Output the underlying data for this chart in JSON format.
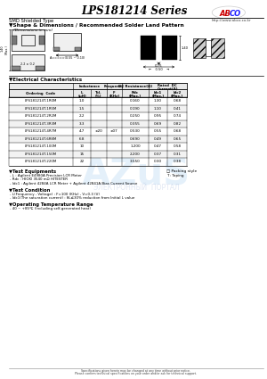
{
  "title": "LPS181214 Series",
  "website": "http://www.abco.co.kr",
  "subtitle1": "SMD Shielded Type",
  "subtitle2": "▼Shape & Dimensions / Recommended Solder Land Pattern",
  "dim_note": "(Dimensions in mm)",
  "section_elec": "▼Electrical Characteristics",
  "table_header_groups": [
    "",
    "Inductance",
    "Frequency",
    "DC Resistance(Ω)",
    "Rated  DC\nCurrent(A)"
  ],
  "table_headers": [
    "Ordering  Code",
    "L\n(μH)",
    "Tol.\n(%)",
    "F\n(KHz)",
    "Rdc\n(Max.)",
    "Idc1\n(Max.)",
    "Idc2\n(Max.)"
  ],
  "table_rows": [
    [
      "LPS181214T-1R0M",
      "1.0",
      "",
      "",
      "0.160",
      "1.30",
      "0.68"
    ],
    [
      "LPS181214T-1R5M",
      "1.5",
      "",
      "",
      "0.190",
      "1.10",
      "0.41"
    ],
    [
      "LPS181214T-2R2M",
      "2.2",
      "",
      "",
      "0.250",
      "0.95",
      "0.74"
    ],
    [
      "LPS181214T-3R3M",
      "3.3",
      "",
      "",
      "0.355",
      "0.69",
      "0.82"
    ],
    [
      "LPS181214T-4R7M",
      "4.7",
      "±20",
      "±07",
      "0.530",
      "0.55",
      "0.68"
    ],
    [
      "LPS181214T-6R8M",
      "6.8",
      "",
      "",
      "0.690",
      "0.49",
      "0.65"
    ],
    [
      "LPS181214T-100M",
      "10",
      "",
      "",
      "1.200",
      "0.47",
      "0.58"
    ],
    [
      "LPS181214T-150M",
      "15",
      "",
      "",
      "2.200",
      "0.37",
      "0.31"
    ],
    [
      "LPS181214T-220M",
      "22",
      "",
      "",
      "3.550",
      "0.30",
      "0.38"
    ]
  ],
  "test_equip_title": "▼Test Equipments",
  "test_equip": [
    "- L : Agilent E4980A Precision LCR Meter",
    "- Rdc : HIOKI 3540 mΩ HITESTER",
    "- Idc1 : Agilent 4284A LCR Meter + Agilent 42841A Bias Current Source"
  ],
  "packing_title": "□ Packing style",
  "packing_item": "T : Taping",
  "test_cond_title": "▼Test Condition",
  "test_cond": [
    "- L(Frequency , Voltage) : F=100 (KHz) , V=0.3 (V)",
    "- Idc1(The saturation current) : δL≤30% reduction from Initial L value"
  ],
  "temp_range_title": "▼Operating Temperature Range",
  "temp_range": "- 40 ~ +85℃ (Including self-generated heat)",
  "footer": "Specifications given herein may be changed at any time without prior notice. Please confirm technical specifications on your order and/or ask for technical support.",
  "bg_color": "#ffffff"
}
